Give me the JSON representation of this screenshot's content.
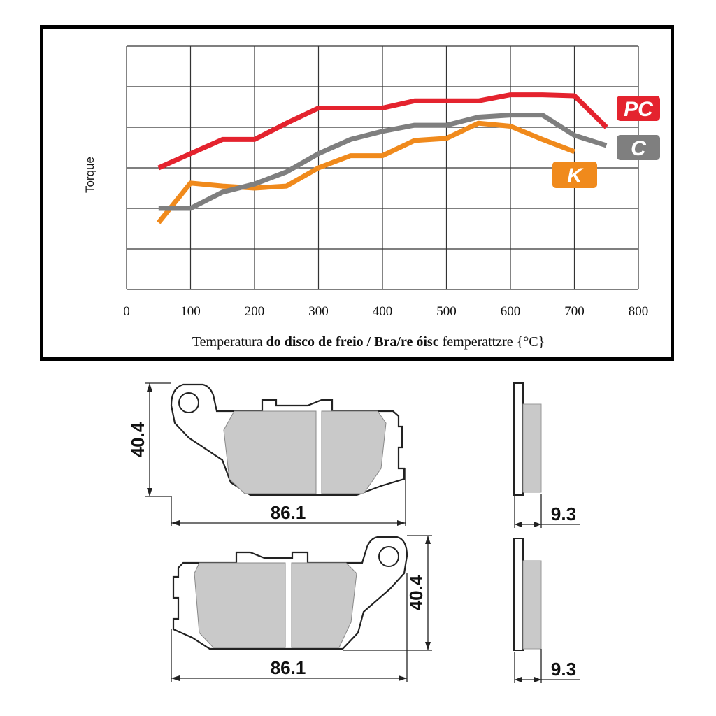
{
  "chart_data": {
    "type": "line",
    "ylabel": "Torque",
    "xlabel_parts": [
      {
        "text": "Temperatura ",
        "bold": false
      },
      {
        "text": "do disco de freio / Bra/re óisc",
        "bold": true
      },
      {
        "text": " femperattzre {°C}",
        "bold": false
      }
    ],
    "xlim": [
      0,
      800
    ],
    "x_ticks": [
      "0",
      "100",
      "200",
      "300",
      "400",
      "500",
      "600",
      "700",
      "800"
    ],
    "grid": true,
    "legend_placement": "right",
    "series": [
      {
        "name": "PC",
        "color": "#e4232e",
        "points": [
          [
            50,
            6.0
          ],
          [
            100,
            6.7
          ],
          [
            150,
            7.4
          ],
          [
            200,
            7.4
          ],
          [
            250,
            8.2
          ],
          [
            300,
            8.95
          ],
          [
            350,
            8.95
          ],
          [
            400,
            8.95
          ],
          [
            450,
            9.3
          ],
          [
            500,
            9.3
          ],
          [
            550,
            9.3
          ],
          [
            600,
            9.6
          ],
          [
            650,
            9.6
          ],
          [
            700,
            9.55
          ],
          [
            750,
            8.0
          ]
        ]
      },
      {
        "name": "C",
        "color": "#7f7f7f",
        "points": [
          [
            50,
            4.0
          ],
          [
            100,
            4.0
          ],
          [
            150,
            4.8
          ],
          [
            200,
            5.2
          ],
          [
            250,
            5.8
          ],
          [
            300,
            6.7
          ],
          [
            350,
            7.4
          ],
          [
            400,
            7.8
          ],
          [
            450,
            8.1
          ],
          [
            500,
            8.1
          ],
          [
            550,
            8.5
          ],
          [
            600,
            8.6
          ],
          [
            650,
            8.6
          ],
          [
            700,
            7.6
          ],
          [
            750,
            7.1
          ]
        ]
      },
      {
        "name": "K",
        "color": "#f08a1c",
        "points": [
          [
            50,
            3.3
          ],
          [
            100,
            5.25
          ],
          [
            150,
            5.1
          ],
          [
            200,
            5.0
          ],
          [
            250,
            5.1
          ],
          [
            300,
            6.0
          ],
          [
            350,
            6.6
          ],
          [
            400,
            6.6
          ],
          [
            450,
            7.35
          ],
          [
            500,
            7.45
          ],
          [
            550,
            8.2
          ],
          [
            600,
            8.05
          ],
          [
            650,
            7.4
          ],
          [
            700,
            6.8
          ]
        ]
      }
    ]
  },
  "pad_dimensions": {
    "top_view": {
      "height": "40.4",
      "width": "86.1",
      "thickness": "9.3"
    },
    "bottom_view": {
      "height": "40.4",
      "width": "86.1",
      "thickness": "9.3"
    }
  }
}
